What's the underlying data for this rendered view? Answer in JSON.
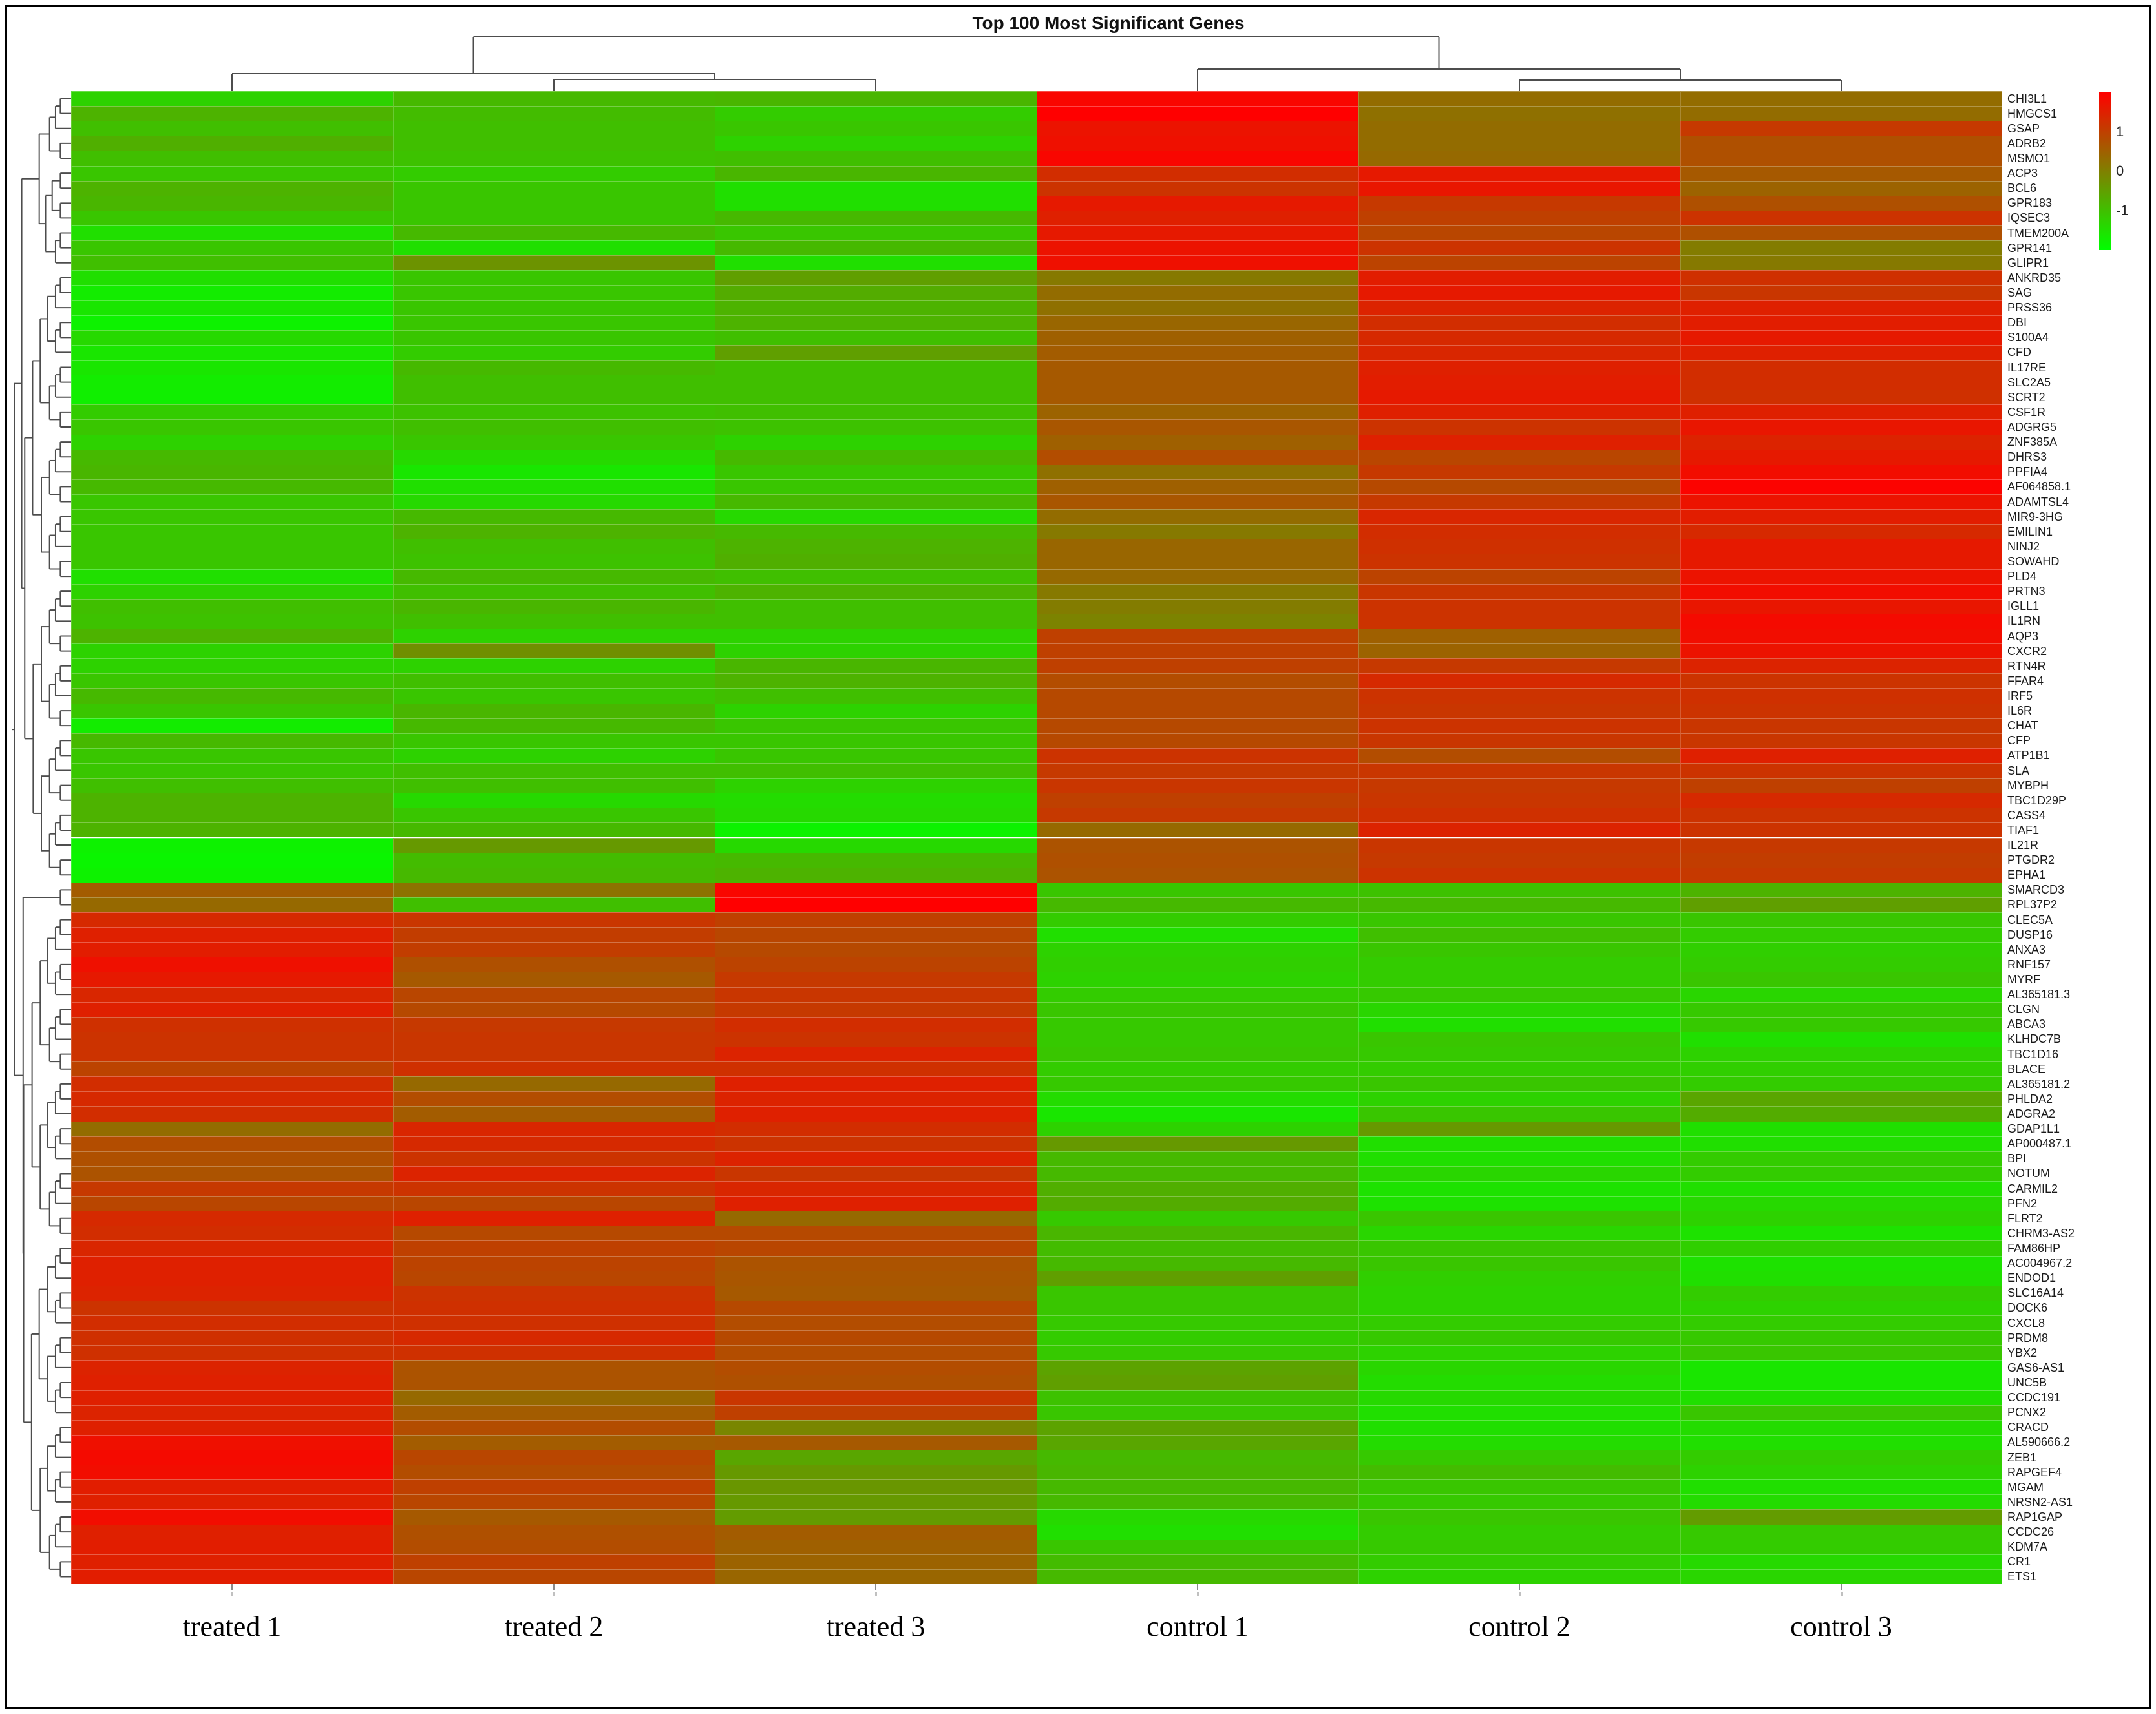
{
  "chart_data": {
    "type": "heatmap",
    "title": "Top 100 Most Significant Genes",
    "columns": [
      "treated 1",
      "treated 2",
      "treated 3",
      "control 1",
      "control 2",
      "control 3"
    ],
    "column_cluster": [
      [
        "treated 1",
        [
          "treated 2",
          "treated 3"
        ]
      ],
      [
        "control 1",
        [
          "control 2",
          "control 3"
        ]
      ]
    ],
    "legend_position": "right",
    "legend_ticks": [
      {
        "label": "1",
        "value": 1
      },
      {
        "label": "0",
        "value": 0
      },
      {
        "label": "-1",
        "value": -1
      }
    ],
    "color_scale": {
      "min": -2,
      "max": 2,
      "low": "#00ff00",
      "mid": "#808000",
      "high": "#ff0000"
    },
    "rows": [
      "CHI3L1",
      "HMGCS1",
      "GSAP",
      "ADRB2",
      "MSMO1",
      "ACP3",
      "BCL6",
      "GPR183",
      "IQSEC3",
      "TMEM200A",
      "GPR141",
      "GLIPR1",
      "ANKRD35",
      "SAG",
      "PRSS36",
      "DBI",
      "S100A4",
      "CFD",
      "IL17RE",
      "SLC2A5",
      "SCRT2",
      "CSF1R",
      "ADGRG5",
      "ZNF385A",
      "DHRS3",
      "PPFIA4",
      "AF064858.1",
      "ADAMTSL4",
      "MIR9-3HG",
      "EMILIN1",
      "NINJ2",
      "SOWAHD",
      "PLD4",
      "PRTN3",
      "IGLL1",
      "IL1RN",
      "AQP3",
      "CXCR2",
      "RTN4R",
      "FFAR4",
      "IRF5",
      "IL6R",
      "CHAT",
      "CFP",
      "ATP1B1",
      "SLA",
      "MYBPH",
      "TBC1D29P",
      "CASS4",
      "TIAF1",
      "IL21R",
      "PTGDR2",
      "EPHA1",
      "SMARCD3",
      "RPL37P2",
      "CLEC5A",
      "DUSP16",
      "ANXA3",
      "RNF157",
      "MYRF",
      "AL365181.3",
      "CLGN",
      "ABCA3",
      "KLHDC7B",
      "TBC1D16",
      "BLACE",
      "AL365181.2",
      "PHLDA2",
      "ADGRA2",
      "GDAP1L1",
      "AP000487.1",
      "BPI",
      "NOTUM",
      "CARMIL2",
      "PFN2",
      "FLRT2",
      "CHRM3-AS2",
      "FAM86HP",
      "AC004967.2",
      "ENDOD1",
      "SLC16A14",
      "DOCK6",
      "CXCL8",
      "PRDM8",
      "YBX2",
      "GAS6-AS1",
      "UNC5B",
      "CCDC191",
      "PCNX2",
      "CRACD",
      "AL590666.2",
      "ZEB1",
      "RAPGEF4",
      "MGAM",
      "NRSN2-AS1",
      "RAP1GAP",
      "CCDC26",
      "KDM7A",
      "CR1",
      "ETS1"
    ],
    "values": [
      [
        -1.3,
        -0.9,
        -0.85,
        1.9,
        0.3,
        0.3
      ],
      [
        -0.8,
        -0.95,
        -1.2,
        2.0,
        0.25,
        0.3
      ],
      [
        -1.0,
        -1.0,
        -1.1,
        1.7,
        0.3,
        1.1
      ],
      [
        -0.75,
        -1.0,
        -1.3,
        1.75,
        0.3,
        0.75
      ],
      [
        -1.0,
        -1.05,
        -1.0,
        1.9,
        0.35,
        0.75
      ],
      [
        -1.1,
        -1.2,
        -0.85,
        1.3,
        1.6,
        0.6
      ],
      [
        -0.8,
        -1.1,
        -1.5,
        1.2,
        1.65,
        0.45
      ],
      [
        -0.85,
        -1.1,
        -1.5,
        1.6,
        1.1,
        0.75
      ],
      [
        -1.1,
        -1.1,
        -0.9,
        1.5,
        1.0,
        1.2
      ],
      [
        -1.5,
        -0.9,
        -1.1,
        1.6,
        0.9,
        0.75
      ],
      [
        -1.1,
        -1.5,
        -0.9,
        1.7,
        1.2,
        0.05
      ],
      [
        -1.0,
        -0.3,
        -1.5,
        1.75,
        0.95,
        0.1
      ],
      [
        -1.5,
        -1.1,
        -0.5,
        0.1,
        1.55,
        1.25
      ],
      [
        -1.7,
        -1.1,
        -0.7,
        0.3,
        1.6,
        1.15
      ],
      [
        -1.6,
        -1.1,
        -0.8,
        0.25,
        1.45,
        1.5
      ],
      [
        -1.8,
        -1.1,
        -0.8,
        0.4,
        1.3,
        1.55
      ],
      [
        -1.4,
        -1.1,
        -1.0,
        0.5,
        1.35,
        1.6
      ],
      [
        -1.6,
        -1.2,
        -0.5,
        0.55,
        1.4,
        1.5
      ],
      [
        -1.6,
        -0.9,
        -1.0,
        0.6,
        1.5,
        1.3
      ],
      [
        -1.7,
        -1.0,
        -1.0,
        0.6,
        1.55,
        1.3
      ],
      [
        -1.75,
        -1.0,
        -1.0,
        0.6,
        1.6,
        1.25
      ],
      [
        -1.2,
        -1.05,
        -1.0,
        0.45,
        1.5,
        1.5
      ],
      [
        -1.1,
        -1.0,
        -1.05,
        0.65,
        1.2,
        1.65
      ],
      [
        -1.3,
        -1.1,
        -1.3,
        0.5,
        1.5,
        1.45
      ],
      [
        -0.9,
        -1.4,
        -0.9,
        0.8,
        0.9,
        1.6
      ],
      [
        -0.85,
        -1.6,
        -1.1,
        0.25,
        1.1,
        1.8
      ],
      [
        -0.9,
        -1.5,
        -1.1,
        0.5,
        0.85,
        1.95
      ],
      [
        -1.1,
        -1.4,
        -0.9,
        0.65,
        1.1,
        1.7
      ],
      [
        -1.1,
        -0.9,
        -1.4,
        0.3,
        1.4,
        1.55
      ],
      [
        -1.1,
        -0.8,
        -0.9,
        0.1,
        1.3,
        1.35
      ],
      [
        -1.1,
        -1.0,
        -0.8,
        0.4,
        1.25,
        1.6
      ],
      [
        -1.1,
        -1.05,
        -0.75,
        0.4,
        1.2,
        1.6
      ],
      [
        -1.5,
        -0.9,
        -1.0,
        0.35,
        0.95,
        1.7
      ],
      [
        -1.3,
        -1.0,
        -0.8,
        0.1,
        1.15,
        1.8
      ],
      [
        -1.0,
        -0.85,
        -1.0,
        0.05,
        1.2,
        1.65
      ],
      [
        -1.05,
        -1.0,
        -1.0,
        -0.05,
        1.2,
        1.85
      ],
      [
        -0.8,
        -1.3,
        -1.3,
        1.0,
        0.5,
        1.8
      ],
      [
        -1.3,
        -0.25,
        -1.3,
        1.0,
        0.45,
        1.7
      ],
      [
        -1.3,
        -1.3,
        -0.85,
        1.0,
        1.1,
        1.45
      ],
      [
        -1.1,
        -1.0,
        -0.8,
        0.8,
        1.35,
        1.2
      ],
      [
        -0.9,
        -1.1,
        -1.0,
        0.85,
        1.2,
        1.25
      ],
      [
        -1.1,
        -0.85,
        -1.3,
        0.85,
        1.15,
        1.2
      ],
      [
        -1.7,
        -0.9,
        -1.1,
        0.85,
        1.2,
        1.15
      ],
      [
        -0.9,
        -1.1,
        -1.1,
        0.85,
        1.15,
        1.15
      ],
      [
        -1.1,
        -1.3,
        -1.1,
        1.2,
        0.8,
        1.5
      ],
      [
        -1.1,
        -1.0,
        -1.0,
        1.1,
        1.15,
        1.2
      ],
      [
        -1.0,
        -1.0,
        -1.3,
        1.15,
        1.1,
        1.0
      ],
      [
        -0.8,
        -1.4,
        -1.45,
        1.0,
        1.15,
        1.35
      ],
      [
        -0.8,
        -1.1,
        -1.4,
        1.1,
        1.25,
        1.2
      ],
      [
        -0.8,
        -0.9,
        -1.8,
        0.35,
        1.45,
        1.2
      ],
      [
        -1.8,
        -0.4,
        -1.4,
        0.7,
        1.15,
        1.1
      ],
      [
        -1.85,
        -0.95,
        -0.9,
        0.75,
        1.1,
        1.05
      ],
      [
        -1.8,
        -0.9,
        -0.8,
        0.7,
        1.2,
        1.1
      ],
      [
        0.55,
        0.2,
        1.9,
        -1.1,
        -1.05,
        -0.8
      ],
      [
        0.35,
        -1.0,
        2.0,
        -0.9,
        -0.9,
        -0.5
      ],
      [
        1.35,
        1.15,
        1.0,
        -1.2,
        -1.1,
        -1.1
      ],
      [
        1.5,
        1.05,
        0.9,
        -1.5,
        -1.0,
        -1.2
      ],
      [
        1.55,
        1.05,
        0.85,
        -1.3,
        -1.1,
        -1.25
      ],
      [
        1.75,
        0.75,
        0.95,
        -1.25,
        -1.2,
        -1.2
      ],
      [
        1.6,
        0.6,
        1.1,
        -1.3,
        -1.2,
        -1.1
      ],
      [
        1.4,
        0.9,
        1.15,
        -1.2,
        -1.15,
        -1.35
      ],
      [
        1.5,
        0.85,
        1.1,
        -1.1,
        -1.35,
        -1.15
      ],
      [
        1.25,
        1.1,
        1.3,
        -1.15,
        -1.5,
        -1.15
      ],
      [
        1.2,
        1.15,
        1.2,
        -1.15,
        -1.1,
        -1.5
      ],
      [
        1.2,
        1.15,
        1.45,
        -1.1,
        -1.15,
        -1.3
      ],
      [
        0.95,
        1.25,
        1.25,
        -1.2,
        -1.2,
        -1.25
      ],
      [
        1.3,
        0.35,
        1.5,
        -1.15,
        -1.1,
        -1.2
      ],
      [
        1.35,
        0.8,
        1.45,
        -1.45,
        -1.3,
        -0.6
      ],
      [
        1.3,
        0.55,
        1.5,
        -1.6,
        -1.1,
        -0.7
      ],
      [
        0.3,
        1.4,
        1.3,
        -1.3,
        -0.4,
        -1.5
      ],
      [
        0.8,
        1.35,
        1.2,
        -0.4,
        -1.5,
        -1.5
      ],
      [
        0.75,
        1.2,
        1.45,
        -0.9,
        -1.5,
        -1.2
      ],
      [
        0.7,
        1.45,
        1.15,
        -0.9,
        -1.35,
        -1.2
      ],
      [
        1.1,
        1.2,
        1.4,
        -0.75,
        -1.55,
        -1.5
      ],
      [
        0.9,
        0.9,
        1.5,
        -0.7,
        -1.55,
        -1.4
      ],
      [
        1.35,
        1.5,
        0.35,
        -1.15,
        -1.1,
        -1.3
      ],
      [
        1.3,
        0.85,
        0.85,
        -0.85,
        -1.35,
        -1.55
      ],
      [
        1.4,
        1.0,
        0.9,
        -0.95,
        -1.1,
        -1.25
      ],
      [
        1.5,
        0.95,
        0.7,
        -0.9,
        -1.1,
        -1.55
      ],
      [
        1.5,
        0.9,
        0.65,
        -0.5,
        -1.25,
        -1.5
      ],
      [
        1.45,
        1.2,
        0.6,
        -1.1,
        -1.3,
        -1.2
      ],
      [
        1.2,
        1.25,
        0.85,
        -1.1,
        -1.3,
        -1.3
      ],
      [
        1.3,
        1.25,
        0.8,
        -1.15,
        -1.2,
        -1.2
      ],
      [
        1.25,
        1.35,
        0.85,
        -1.2,
        -1.15,
        -1.15
      ],
      [
        1.25,
        1.25,
        0.8,
        -1.15,
        -1.3,
        -1.1
      ],
      [
        1.45,
        0.7,
        0.8,
        -0.55,
        -1.35,
        -1.6
      ],
      [
        1.5,
        0.7,
        0.75,
        -0.5,
        -1.45,
        -1.6
      ],
      [
        1.5,
        0.35,
        1.15,
        -1.05,
        -1.4,
        -1.5
      ],
      [
        1.45,
        0.55,
        1.0,
        -1.1,
        -1.5,
        -1.1
      ],
      [
        1.5,
        0.8,
        -0.1,
        -0.55,
        -1.5,
        -1.45
      ],
      [
        1.75,
        0.55,
        0.6,
        -0.6,
        -1.45,
        -1.5
      ],
      [
        1.85,
        0.9,
        -0.6,
        -0.9,
        -1.15,
        -1.2
      ],
      [
        1.8,
        0.8,
        -0.4,
        -0.85,
        -0.95,
        -1.3
      ],
      [
        1.55,
        1.0,
        -0.35,
        -0.9,
        -1.1,
        -1.5
      ],
      [
        1.5,
        0.9,
        -0.4,
        -0.9,
        -1.15,
        -1.45
      ],
      [
        1.8,
        0.6,
        -0.45,
        -1.4,
        -1.1,
        -0.45
      ],
      [
        1.5,
        0.75,
        0.55,
        -1.5,
        -1.2,
        -1.15
      ],
      [
        1.55,
        0.8,
        0.5,
        -1.1,
        -1.15,
        -1.2
      ],
      [
        1.5,
        1.0,
        0.45,
        -0.95,
        -1.2,
        -1.4
      ],
      [
        1.55,
        0.9,
        0.4,
        -0.9,
        -1.3,
        -1.35
      ]
    ]
  }
}
